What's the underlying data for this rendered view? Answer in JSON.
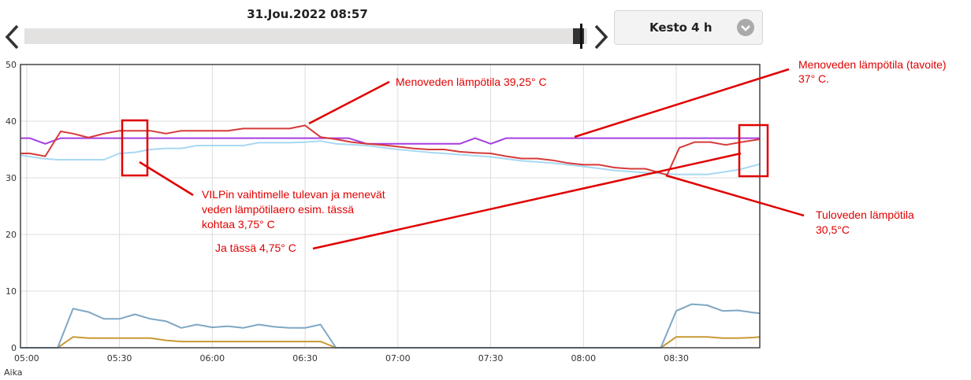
{
  "header": {
    "date": "31.Jou.2022 08:57",
    "duration_label": "Kesto 4 h"
  },
  "icons": {
    "prev": "chevron-left-icon",
    "next": "chevron-right-icon",
    "dropdown": "chevron-down-icon"
  },
  "colors": {
    "supply_temp": "#d63a3a",
    "return_temp": "#a8d8f2",
    "target_temp": "#a63ee0",
    "series_blue": "#7fa7c4",
    "series_gold": "#c99935",
    "annotation": "#e00000"
  },
  "annotations": {
    "supply_peak": "Menoveden lämpötila 39,25° C",
    "target_line_1": "Menoveden lämpötila (tavoite)",
    "target_line_2": "37° C.",
    "diff_1": "VILPin vaihtimelle tulevan ja menevät",
    "diff_2": "veden lämpötilaero esim. tässä",
    "diff_3": "kohtaa 3,75° C",
    "diff_here": "Ja tässä 4,75° C",
    "return_1": "Tuloveden lämpötila",
    "return_2": "30,5°C"
  },
  "chart_data": {
    "type": "line",
    "xlabel": "Aika",
    "ylabel": "",
    "ylim": [
      0,
      50
    ],
    "y_ticks": [
      0,
      10,
      20,
      30,
      40,
      50
    ],
    "x_ticks": [
      "05:00",
      "05:30",
      "06:00",
      "06:30",
      "07:00",
      "07:30",
      "08:00",
      "08:30"
    ],
    "x_tick_minutes": [
      0,
      30,
      60,
      90,
      120,
      150,
      180,
      210
    ],
    "x_range_minutes": [
      -2,
      237
    ],
    "grid": true,
    "series": [
      {
        "key": "supply_temp",
        "x": [
          -2,
          1,
          6,
          11,
          15,
          20,
          25,
          30,
          35,
          40,
          45,
          50,
          55,
          60,
          65,
          70,
          75,
          80,
          85,
          90,
          95,
          100,
          105,
          110,
          115,
          120,
          125,
          130,
          135,
          140,
          145,
          150,
          155,
          160,
          165,
          170,
          175,
          180,
          185,
          190,
          195,
          200,
          204,
          207,
          211,
          216,
          221,
          226,
          231,
          237
        ],
        "values": [
          34.3,
          34.3,
          33.8,
          38.2,
          37.8,
          37.1,
          37.8,
          38.3,
          38.3,
          38.3,
          37.8,
          38.3,
          38.3,
          38.3,
          38.3,
          38.7,
          38.7,
          38.7,
          38.7,
          39.25,
          37.2,
          36.8,
          36.3,
          36.0,
          35.8,
          35.5,
          35.2,
          35.0,
          35.0,
          34.6,
          34.4,
          34.3,
          33.8,
          33.4,
          33.4,
          33.1,
          32.6,
          32.3,
          32.3,
          31.8,
          31.6,
          31.6,
          31.0,
          30.5,
          35.3,
          36.3,
          36.3,
          35.8,
          36.3,
          36.8
        ]
      },
      {
        "key": "return_temp",
        "x": [
          -2,
          5,
          10,
          15,
          20,
          25,
          30,
          35,
          40,
          45,
          50,
          55,
          60,
          65,
          70,
          75,
          80,
          85,
          90,
          95,
          100,
          110,
          120,
          130,
          140,
          150,
          160,
          170,
          180,
          190,
          200,
          210,
          220,
          230,
          237
        ],
        "values": [
          34.0,
          33.4,
          33.2,
          33.2,
          33.2,
          33.2,
          34.3,
          34.5,
          35.0,
          35.2,
          35.2,
          35.7,
          35.7,
          35.7,
          35.7,
          36.2,
          36.2,
          36.2,
          36.3,
          36.5,
          36.0,
          35.7,
          35.0,
          34.5,
          34.1,
          33.7,
          33.0,
          32.6,
          32.0,
          31.3,
          30.9,
          30.6,
          30.6,
          31.4,
          32.4
        ]
      },
      {
        "key": "target_temp",
        "x": [
          -2,
          1,
          6,
          11,
          20,
          40,
          60,
          80,
          96,
          100,
          104,
          110,
          130,
          140,
          145,
          150,
          155,
          180,
          200,
          237
        ],
        "values": [
          37.0,
          37.0,
          36.0,
          37.0,
          37.0,
          37.0,
          37.0,
          37.0,
          37.0,
          37.0,
          37.0,
          36.0,
          36.0,
          36.0,
          37.0,
          36.0,
          37.0,
          37.0,
          37.0,
          37.0
        ]
      },
      {
        "key": "series_blue",
        "x": [
          -2,
          5,
          10,
          15,
          20,
          25,
          30,
          35,
          40,
          45,
          50,
          55,
          60,
          65,
          70,
          75,
          80,
          85,
          90,
          95,
          100,
          200,
          205,
          210,
          215,
          220,
          225,
          230,
          235,
          237
        ],
        "values": [
          0,
          0,
          0,
          6.9,
          6.3,
          5.1,
          5.1,
          5.9,
          5.1,
          4.7,
          3.5,
          4.1,
          3.6,
          3.8,
          3.5,
          4.1,
          3.7,
          3.5,
          3.5,
          4.1,
          0,
          0,
          0,
          6.5,
          7.7,
          7.5,
          6.5,
          6.6,
          6.2,
          6.1
        ]
      },
      {
        "key": "series_gold",
        "x": [
          -2,
          5,
          10,
          15,
          20,
          25,
          30,
          35,
          40,
          45,
          50,
          60,
          70,
          80,
          90,
          95,
          100,
          200,
          205,
          210,
          215,
          220,
          225,
          230,
          235,
          237
        ],
        "values": [
          0,
          0,
          0,
          1.9,
          1.7,
          1.7,
          1.7,
          1.7,
          1.7,
          1.3,
          1.1,
          1.1,
          1.1,
          1.1,
          1.1,
          1.1,
          0,
          0,
          0,
          1.9,
          1.9,
          1.9,
          1.7,
          1.7,
          1.8,
          1.9
        ]
      }
    ]
  }
}
